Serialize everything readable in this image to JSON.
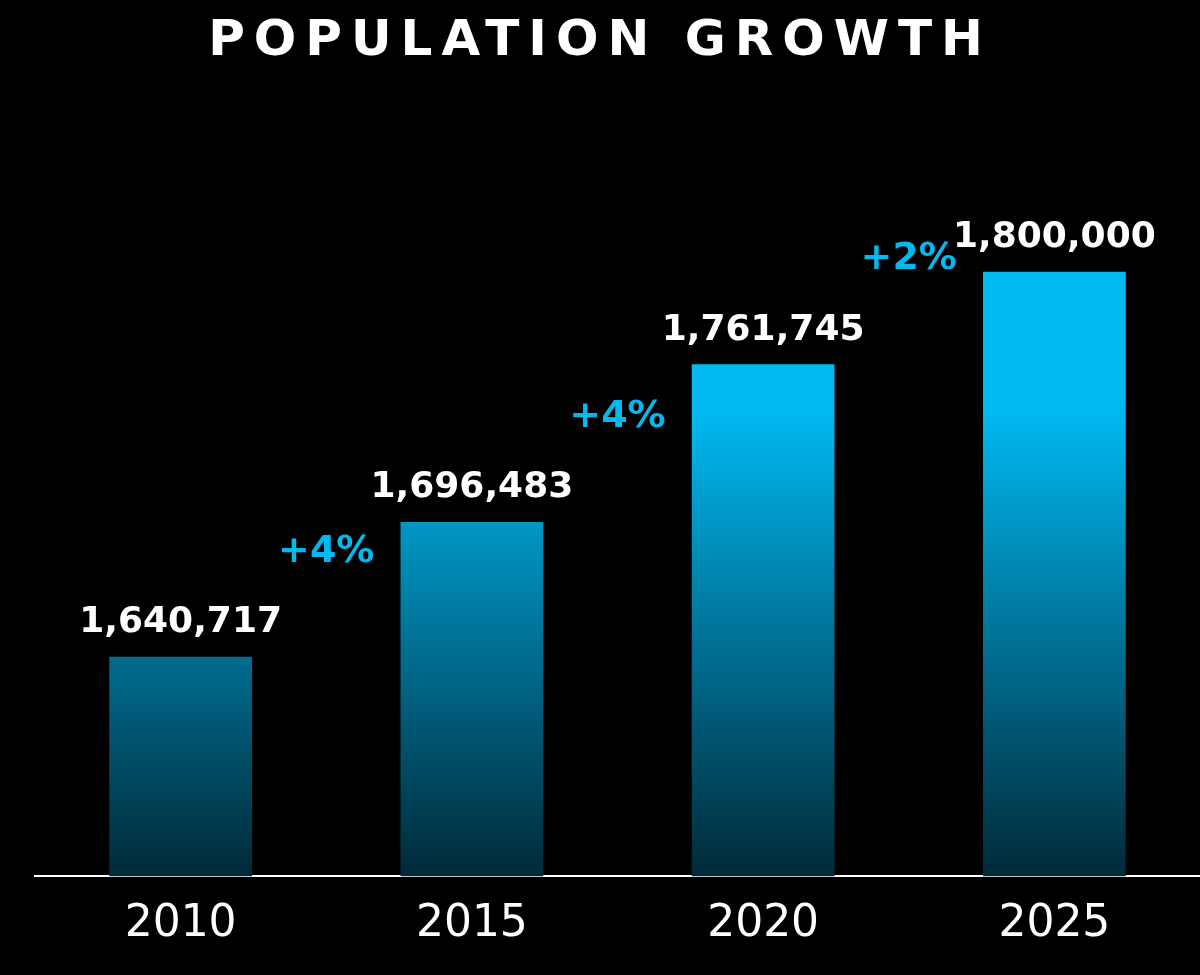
{
  "chart_data": {
    "type": "bar",
    "title": "POPULATION GROWTH",
    "categories": [
      "2010",
      "2015",
      "2020",
      "2025"
    ],
    "values": [
      1640717,
      1696483,
      1761745,
      1800000
    ],
    "color": "#00b9f1",
    "value_labels": [
      "1,640,717",
      "1,696,483",
      "1,761,745",
      "1,800,000"
    ],
    "annotations": [
      "+4%",
      "+4%",
      "+2%"
    ]
  }
}
